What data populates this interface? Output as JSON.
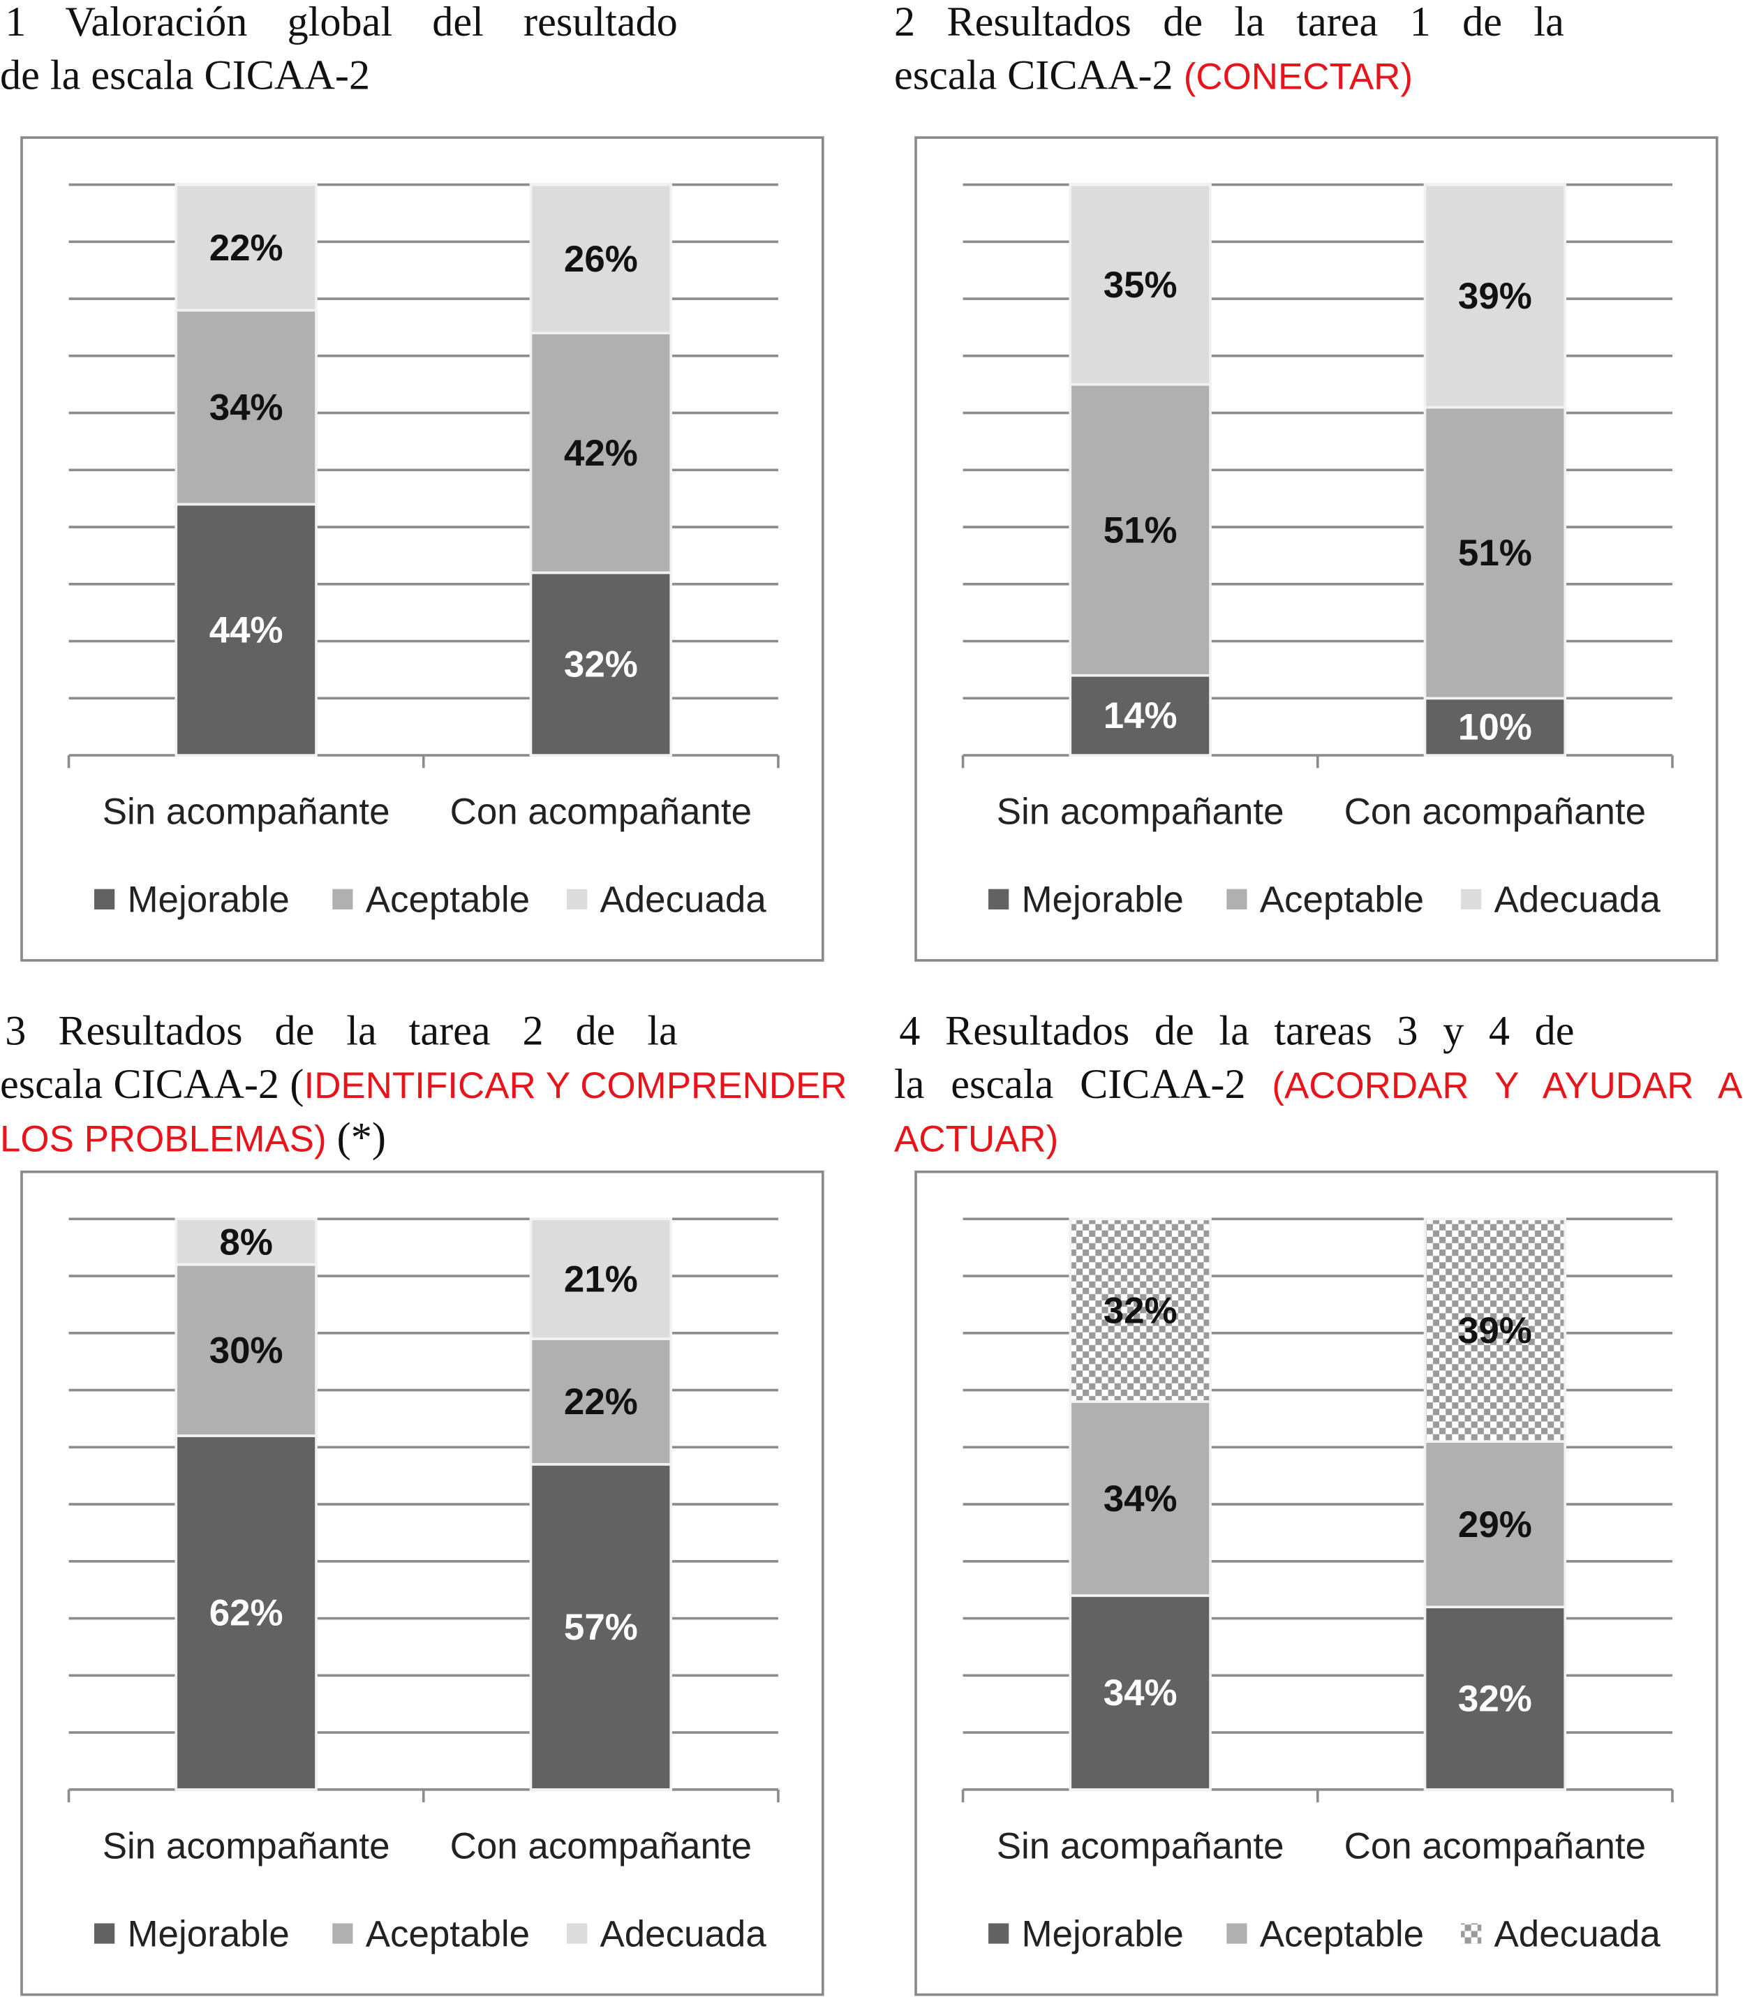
{
  "titles": [
    {
      "lines": [
        [
          {
            "t": "1 Valoración global del resultado"
          }
        ],
        [
          {
            "t": "de la escala CICAA-2"
          }
        ]
      ]
    },
    {
      "lines": [
        [
          {
            "t": "2 Resultados de la tarea 1 de la"
          }
        ],
        [
          {
            "t": "escala CICAA-2 "
          },
          {
            "t": "(CONECTAR)",
            "red": true
          }
        ]
      ]
    },
    {
      "lines": [
        [
          {
            "t": "3 Resultados de la tarea 2 de la"
          }
        ],
        [
          {
            "t": "escala CICAA-2 ("
          },
          {
            "t": "IDENTIFICAR Y COMPRENDER",
            "red": true
          }
        ],
        [
          {
            "t": "LOS PROBLEMAS)",
            "red": true
          },
          {
            "t": " (*)"
          }
        ]
      ]
    },
    {
      "lines": [
        [
          {
            "t": "4 Resultados de la tareas 3 y 4 de"
          }
        ],
        [
          {
            "t": "la escala CICAA-2 "
          },
          {
            "t": "(ACORDAR Y AYUDAR A",
            "red": true
          }
        ],
        [
          {
            "t": "ACTUAR)",
            "red": true
          }
        ]
      ]
    }
  ],
  "colors": {
    "Mejorable": "#626262",
    "Aceptable": "#b0b0b0",
    "Adecuada": "#dcdcdc",
    "grid": "#8c8c8c"
  },
  "chart_data": [
    {
      "type": "bar",
      "stacked": true,
      "percent": true,
      "title": "1 Valoración global del resultado de la escala CICAA-2",
      "categories": [
        "Sin acompañante",
        "Con acompañante"
      ],
      "series": [
        {
          "name": "Mejorable",
          "values": [
            44,
            32
          ]
        },
        {
          "name": "Aceptable",
          "values": [
            34,
            42
          ]
        },
        {
          "name": "Adecuada",
          "values": [
            22,
            26
          ]
        }
      ],
      "ylim": [
        0,
        100
      ],
      "grid": true,
      "legend": "bottom"
    },
    {
      "type": "bar",
      "stacked": true,
      "percent": true,
      "title": "2 Resultados de la tarea 1 de la escala CICAA-2 (CONECTAR)",
      "categories": [
        "Sin acompañante",
        "Con acompañante"
      ],
      "series": [
        {
          "name": "Mejorable",
          "values": [
            14,
            10
          ]
        },
        {
          "name": "Aceptable",
          "values": [
            51,
            51
          ]
        },
        {
          "name": "Adecuada",
          "values": [
            35,
            39
          ]
        }
      ],
      "ylim": [
        0,
        100
      ],
      "grid": true,
      "legend": "bottom"
    },
    {
      "type": "bar",
      "stacked": true,
      "percent": true,
      "title": "3 Resultados de la tarea 2 de la escala CICAA-2 (IDENTIFICAR Y COMPRENDER LOS PROBLEMAS) (*)",
      "categories": [
        "Sin acompañante",
        "Con acompañante"
      ],
      "series": [
        {
          "name": "Mejorable",
          "values": [
            62,
            57
          ]
        },
        {
          "name": "Aceptable",
          "values": [
            30,
            22
          ]
        },
        {
          "name": "Adecuada",
          "values": [
            8,
            21
          ]
        }
      ],
      "ylim": [
        0,
        100
      ],
      "grid": true,
      "legend": "bottom"
    },
    {
      "type": "bar",
      "stacked": true,
      "percent": true,
      "title": "4 Resultados de la tareas 3 y 4 de la escala CICAA-2 (ACORDAR Y AYUDAR A ACTUAR)",
      "categories": [
        "Sin acompañante",
        "Con acompañante"
      ],
      "series": [
        {
          "name": "Mejorable",
          "values": [
            34,
            32
          ]
        },
        {
          "name": "Aceptable",
          "values": [
            34,
            29
          ]
        },
        {
          "name": "Adecuada",
          "values": [
            32,
            39
          ],
          "pattern": "checker"
        }
      ],
      "ylim": [
        0,
        100
      ],
      "grid": true,
      "legend": "bottom"
    }
  ]
}
